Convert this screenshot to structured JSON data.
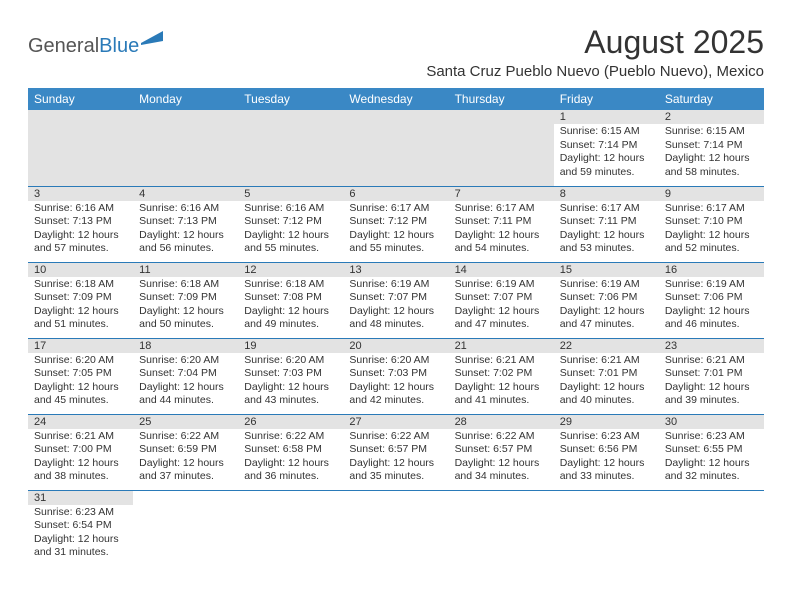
{
  "logo": {
    "text1": "General",
    "text2": "Blue"
  },
  "title": "August 2025",
  "location": "Santa Cruz Pueblo Nuevo (Pueblo Nuevo), Mexico",
  "colors": {
    "header_bg": "#3a88c5",
    "header_fg": "#ffffff",
    "daynum_bg": "#e3e3e3",
    "border": "#2a7ab8",
    "text": "#333333"
  },
  "dayNames": [
    "Sunday",
    "Monday",
    "Tuesday",
    "Wednesday",
    "Thursday",
    "Friday",
    "Saturday"
  ],
  "weeks": [
    [
      {
        "empty": true
      },
      {
        "empty": true
      },
      {
        "empty": true
      },
      {
        "empty": true
      },
      {
        "empty": true
      },
      {
        "n": 1,
        "sr": "6:15 AM",
        "ss": "7:14 PM",
        "dh": 12,
        "dm": 59
      },
      {
        "n": 2,
        "sr": "6:15 AM",
        "ss": "7:14 PM",
        "dh": 12,
        "dm": 58
      }
    ],
    [
      {
        "n": 3,
        "sr": "6:16 AM",
        "ss": "7:13 PM",
        "dh": 12,
        "dm": 57
      },
      {
        "n": 4,
        "sr": "6:16 AM",
        "ss": "7:13 PM",
        "dh": 12,
        "dm": 56
      },
      {
        "n": 5,
        "sr": "6:16 AM",
        "ss": "7:12 PM",
        "dh": 12,
        "dm": 55
      },
      {
        "n": 6,
        "sr": "6:17 AM",
        "ss": "7:12 PM",
        "dh": 12,
        "dm": 55
      },
      {
        "n": 7,
        "sr": "6:17 AM",
        "ss": "7:11 PM",
        "dh": 12,
        "dm": 54
      },
      {
        "n": 8,
        "sr": "6:17 AM",
        "ss": "7:11 PM",
        "dh": 12,
        "dm": 53
      },
      {
        "n": 9,
        "sr": "6:17 AM",
        "ss": "7:10 PM",
        "dh": 12,
        "dm": 52
      }
    ],
    [
      {
        "n": 10,
        "sr": "6:18 AM",
        "ss": "7:09 PM",
        "dh": 12,
        "dm": 51
      },
      {
        "n": 11,
        "sr": "6:18 AM",
        "ss": "7:09 PM",
        "dh": 12,
        "dm": 50
      },
      {
        "n": 12,
        "sr": "6:18 AM",
        "ss": "7:08 PM",
        "dh": 12,
        "dm": 49
      },
      {
        "n": 13,
        "sr": "6:19 AM",
        "ss": "7:07 PM",
        "dh": 12,
        "dm": 48
      },
      {
        "n": 14,
        "sr": "6:19 AM",
        "ss": "7:07 PM",
        "dh": 12,
        "dm": 47
      },
      {
        "n": 15,
        "sr": "6:19 AM",
        "ss": "7:06 PM",
        "dh": 12,
        "dm": 47
      },
      {
        "n": 16,
        "sr": "6:19 AM",
        "ss": "7:06 PM",
        "dh": 12,
        "dm": 46
      }
    ],
    [
      {
        "n": 17,
        "sr": "6:20 AM",
        "ss": "7:05 PM",
        "dh": 12,
        "dm": 45
      },
      {
        "n": 18,
        "sr": "6:20 AM",
        "ss": "7:04 PM",
        "dh": 12,
        "dm": 44
      },
      {
        "n": 19,
        "sr": "6:20 AM",
        "ss": "7:03 PM",
        "dh": 12,
        "dm": 43
      },
      {
        "n": 20,
        "sr": "6:20 AM",
        "ss": "7:03 PM",
        "dh": 12,
        "dm": 42
      },
      {
        "n": 21,
        "sr": "6:21 AM",
        "ss": "7:02 PM",
        "dh": 12,
        "dm": 41
      },
      {
        "n": 22,
        "sr": "6:21 AM",
        "ss": "7:01 PM",
        "dh": 12,
        "dm": 40
      },
      {
        "n": 23,
        "sr": "6:21 AM",
        "ss": "7:01 PM",
        "dh": 12,
        "dm": 39
      }
    ],
    [
      {
        "n": 24,
        "sr": "6:21 AM",
        "ss": "7:00 PM",
        "dh": 12,
        "dm": 38
      },
      {
        "n": 25,
        "sr": "6:22 AM",
        "ss": "6:59 PM",
        "dh": 12,
        "dm": 37
      },
      {
        "n": 26,
        "sr": "6:22 AM",
        "ss": "6:58 PM",
        "dh": 12,
        "dm": 36
      },
      {
        "n": 27,
        "sr": "6:22 AM",
        "ss": "6:57 PM",
        "dh": 12,
        "dm": 35
      },
      {
        "n": 28,
        "sr": "6:22 AM",
        "ss": "6:57 PM",
        "dh": 12,
        "dm": 34
      },
      {
        "n": 29,
        "sr": "6:23 AM",
        "ss": "6:56 PM",
        "dh": 12,
        "dm": 33
      },
      {
        "n": 30,
        "sr": "6:23 AM",
        "ss": "6:55 PM",
        "dh": 12,
        "dm": 32
      }
    ],
    [
      {
        "n": 31,
        "sr": "6:23 AM",
        "ss": "6:54 PM",
        "dh": 12,
        "dm": 31
      },
      {
        "blank": true
      },
      {
        "blank": true
      },
      {
        "blank": true
      },
      {
        "blank": true
      },
      {
        "blank": true
      },
      {
        "blank": true
      }
    ]
  ],
  "labels": {
    "sunrise": "Sunrise:",
    "sunset": "Sunset:",
    "daylight": "Daylight:",
    "hours": "hours",
    "and": "and",
    "minutes": "minutes."
  }
}
